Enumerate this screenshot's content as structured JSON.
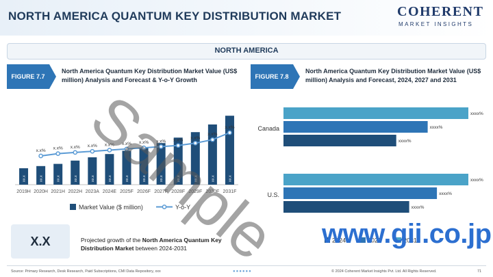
{
  "header": {
    "title": "NORTH AMERICA QUANTUM KEY DISTRIBUTION MARKET",
    "logo_main": "COHERENT",
    "logo_sub": "MARKET INSIGHTS"
  },
  "region_label": "NORTH AMERICA",
  "figure_left": {
    "tag": "FIGURE 7.7",
    "caption": "North America Quantum Key Distribution Market Value (US$ million) Analysis and Forecast & Y-o-Y Growth"
  },
  "figure_right": {
    "tag": "FIGURE 7.8",
    "caption": "North America Quantum Key Distribution Market Value (US$ million) Analysis and Forecast, 2024, 2027 and 2031"
  },
  "growth": {
    "value": "X.X",
    "text_prefix": "Projected growth of the ",
    "text_bold": "North America Quantum Key Distribution Market",
    "text_suffix": " between 2024-2031"
  },
  "footer": {
    "source": "Source: Primary Research, Desk Research, Paid Subscriptions, CMI Data Repository, xxx",
    "copyright": "© 2024 Coherent Market Insights Pvt. Ltd. All Rights Reserved.",
    "page": "71",
    "dots": "●●●●●●"
  },
  "watermarks": {
    "sample": "Sample",
    "gii": "www.gii.co.jp"
  },
  "colors": {
    "bar_dark": "#1f4e79",
    "bar_mid": "#2e75b6",
    "bar_light": "#4aa3c8",
    "line": "#5b9bd5"
  },
  "chart_data": [
    {
      "type": "bar",
      "categories": [
        "2019H",
        "2020H",
        "2021H",
        "2022H",
        "2023A",
        "2024E",
        "2025F",
        "2026F",
        "2027F",
        "2028F",
        "2029F",
        "2030F",
        "2031F"
      ],
      "series": [
        {
          "name": "Market Value ($ million)",
          "values": [
            15,
            17,
            19,
            22,
            25,
            28,
            31,
            34,
            38,
            43,
            48,
            55,
            63
          ],
          "data_labels": [
            "xx.x",
            "xx.x",
            "xx.x",
            "xx.x",
            "xx.x",
            "xx.x",
            "xx.x",
            "xx.x",
            "xx.x",
            "xx.x",
            "xx.x",
            "xx.x",
            "xx.x"
          ]
        },
        {
          "name": "Y-o-Y",
          "values": [
            null,
            12,
            13,
            13.5,
            14,
            14.5,
            15,
            15.5,
            16,
            16.5,
            17.5,
            19,
            22
          ],
          "data_labels": [
            "",
            "x.x%",
            "x.x%",
            "x.x%",
            "x.x%",
            "x.x%",
            "x.x%",
            "x.x%",
            "x.x%",
            "x.x%",
            "x.x%",
            "x.x%",
            "x.x%"
          ]
        }
      ],
      "legend": "bottom"
    },
    {
      "type": "bar",
      "orientation": "horizontal",
      "categories": [
        "Canada",
        "U.S."
      ],
      "series": [
        {
          "name": "2031",
          "values": [
            100,
            100
          ],
          "data_labels": [
            "xxxx%",
            "xxxx%"
          ]
        },
        {
          "name": "2027",
          "values": [
            78,
            83
          ],
          "data_labels": [
            "xxxx%",
            "xxxx%"
          ]
        },
        {
          "name": "2024",
          "values": [
            61,
            68
          ],
          "data_labels": [
            "xxxx%",
            "xxxx%"
          ]
        }
      ],
      "legend": "bottom"
    }
  ]
}
